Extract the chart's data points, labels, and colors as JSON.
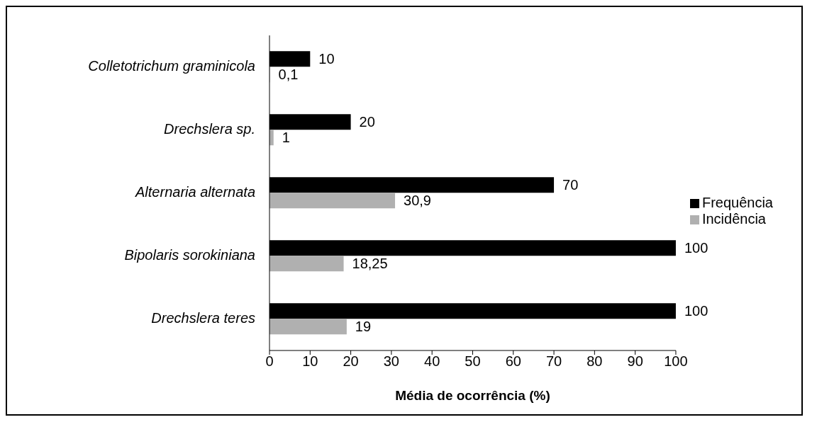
{
  "chart_data": {
    "type": "bar",
    "orientation": "horizontal",
    "categories": [
      "Colletotrichum graminicola",
      "Drechslera sp.",
      "Alternaria alternata",
      "Bipolaris sorokiniana",
      "Drechslera teres"
    ],
    "series": [
      {
        "name": "Frequência",
        "color": "#000000",
        "values": [
          10,
          20,
          70,
          100,
          100
        ],
        "value_labels": [
          "10",
          "20",
          "70",
          "100",
          "100"
        ]
      },
      {
        "name": "Incidência",
        "color": "#b0b0b0",
        "values": [
          0.1,
          1,
          30.9,
          18.25,
          19
        ],
        "value_labels": [
          "0,1",
          "1",
          "30,9",
          "18,25",
          "19"
        ]
      }
    ],
    "xlim": [
      0,
      100
    ],
    "xticks": [
      0,
      10,
      20,
      30,
      40,
      50,
      60,
      70,
      80,
      90,
      100
    ],
    "xlabel": "Média de ocorrência (%)",
    "legend": "right",
    "grid": false
  }
}
